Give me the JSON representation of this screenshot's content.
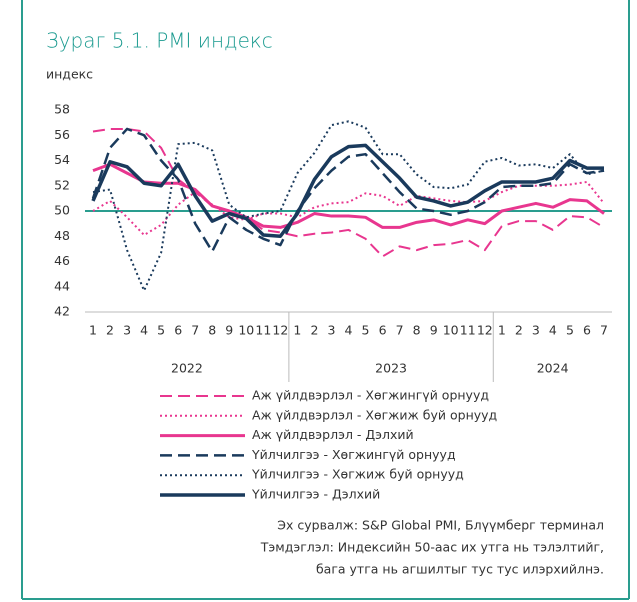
{
  "chart_data": {
    "type": "line",
    "title": "Зураг 5.1. PMI индекс",
    "y_label": "индекс",
    "categories": [
      "1",
      "2",
      "3",
      "4",
      "5",
      "6",
      "7",
      "8",
      "9",
      "10",
      "11",
      "12",
      "1",
      "2",
      "3",
      "4",
      "5",
      "6",
      "7",
      "8",
      "9",
      "10",
      "11",
      "12",
      "1",
      "2",
      "3",
      "4",
      "5",
      "6",
      "7"
    ],
    "year_groups": [
      {
        "label": "2022",
        "months": 12
      },
      {
        "label": "2023",
        "months": 12
      },
      {
        "label": "2024",
        "months": 7
      }
    ],
    "ylim": [
      42,
      58
    ],
    "yticks": [
      42,
      44,
      46,
      48,
      50,
      52,
      54,
      56,
      58
    ],
    "reference_line": {
      "value": 50,
      "color": "#2a9d8f"
    },
    "series": [
      {
        "name": "Аж үйлдвэрлэл - Хөгжингүй орнууд",
        "color": "#e8368f",
        "line_style": "dashed",
        "line_width": 2,
        "values": [
          56.3,
          56.5,
          56.5,
          56.3,
          55,
          52.5,
          51.5,
          50.4,
          50,
          49.5,
          48.5,
          48.3,
          48,
          48.2,
          48.3,
          48.5,
          47.8,
          46.4,
          47.2,
          46.9,
          47.3,
          47.4,
          47.7,
          46.9,
          48.8,
          49.2,
          49.2,
          48.5,
          49.6,
          49.5,
          48.7
        ]
      },
      {
        "name": "Аж үйлдвэрлэл - Хөгжиж буй орнууд",
        "color": "#e8368f",
        "line_style": "dotted",
        "line_width": 2,
        "values": [
          50,
          50.8,
          49.5,
          48.1,
          48.9,
          50.5,
          51.5,
          50.5,
          49.5,
          49.3,
          49.8,
          49.8,
          49.5,
          50.3,
          50.6,
          50.7,
          51.4,
          51.2,
          50.4,
          51.2,
          51,
          50.8,
          50.7,
          50.8,
          51.5,
          52,
          52,
          52,
          52.1,
          52.3,
          50.6
        ]
      },
      {
        "name": "Аж үйлдвэрлэл - Дэлхий",
        "color": "#e8368f",
        "line_style": "solid",
        "line_width": 3,
        "values": [
          53.2,
          53.7,
          53,
          52.3,
          52.2,
          52.2,
          51.7,
          50.4,
          50,
          49.5,
          48.8,
          48.7,
          49.1,
          49.8,
          49.6,
          49.6,
          49.5,
          48.7,
          48.7,
          49.1,
          49.3,
          48.9,
          49.3,
          49,
          50,
          50.3,
          50.6,
          50.3,
          50.9,
          50.8,
          49.8
        ]
      },
      {
        "name": "Үйлчилгээ - Хөгжингүй орнууд",
        "color": "#1a3a5c",
        "line_style": "dashed",
        "line_width": 2.5,
        "values": [
          51,
          55,
          56.5,
          56,
          54,
          52.5,
          49,
          46.8,
          49.5,
          48.5,
          47.8,
          47.3,
          50,
          51.8,
          53.2,
          54.3,
          54.5,
          53,
          51.5,
          50.2,
          50,
          49.7,
          50,
          50.7,
          51.9,
          52,
          52,
          52.2,
          53.7,
          53,
          53.2
        ]
      },
      {
        "name": "Үйлчилгээ - Хөгжиж буй орнууд",
        "color": "#1a3a5c",
        "line_style": "dotted",
        "line_width": 2,
        "values": [
          51.5,
          51.7,
          46.9,
          43.7,
          46.7,
          55.3,
          55.4,
          54.8,
          50.5,
          49.5,
          49.8,
          50,
          53,
          54.6,
          56.8,
          57.1,
          56.6,
          54.5,
          54.5,
          52.9,
          51.9,
          51.8,
          52.1,
          53.9,
          54.2,
          53.6,
          53.7,
          53.4,
          54.5,
          52.9,
          53.2
        ]
      },
      {
        "name": "Үйлчилгээ - Дэлхий",
        "color": "#1a3a5c",
        "line_style": "solid",
        "line_width": 3.5,
        "values": [
          50.8,
          53.9,
          53.5,
          52.2,
          52,
          53.7,
          51.2,
          49.2,
          49.8,
          49.4,
          48.1,
          48,
          49.8,
          52.5,
          54.3,
          55.1,
          55.2,
          53.9,
          52.6,
          51.1,
          50.8,
          50.4,
          50.7,
          51.6,
          52.3,
          52.3,
          52.3,
          52.6,
          54,
          53.4,
          53.4
        ]
      }
    ],
    "notes": [
      "Эх сурвалж: S&P Global PMI,  Блүүмберг терминал",
      "Тэмдэглэл: Индексийн 50-аас их утга нь тэлэлтийг,",
      "бага утга нь агшилтыг тус тус илэрхийлнэ."
    ]
  }
}
